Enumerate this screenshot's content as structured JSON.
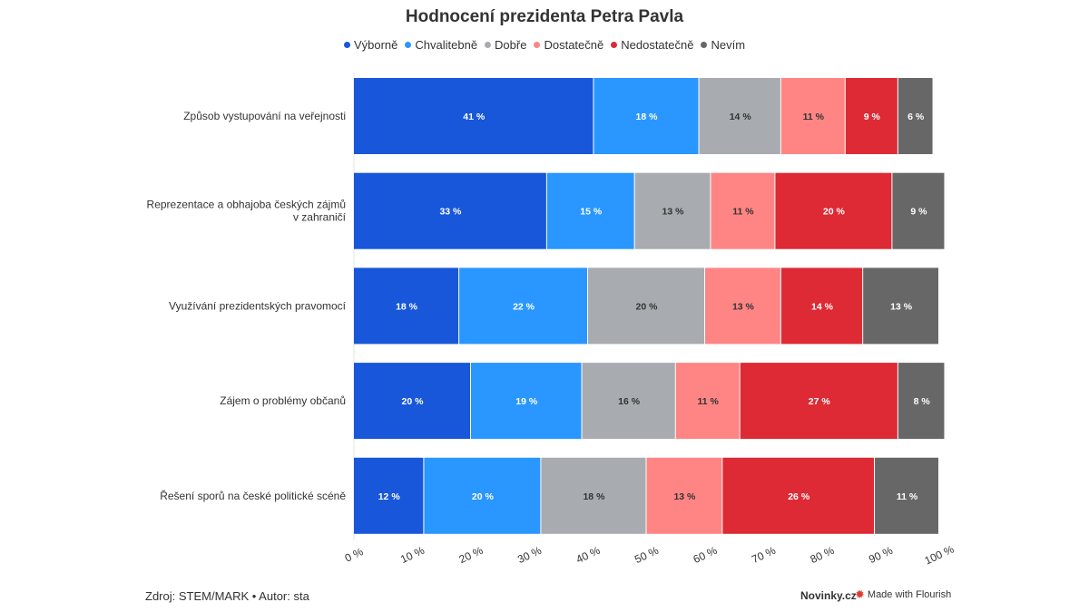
{
  "chart_data": {
    "type": "bar",
    "orientation": "horizontal",
    "stacked": true,
    "title": "Hodnocení prezidenta Petra Pavla",
    "categories": [
      "Způsob vystupování na veřejnosti",
      "Reprezentace a obhajoba českých zájmů v zahraničí",
      "Využívání prezidentských pravomocí",
      "Zájem o problémy občanů",
      "Řešení sporů na české politické scéně"
    ],
    "series": [
      {
        "name": "Výborně",
        "color": "#1857d9",
        "values": [
          41,
          33,
          18,
          20,
          12
        ]
      },
      {
        "name": "Chvalitebně",
        "color": "#2997ff",
        "values": [
          18,
          15,
          22,
          19,
          20
        ]
      },
      {
        "name": "Dobře",
        "color": "#a8abaf",
        "values": [
          14,
          13,
          20,
          16,
          18
        ]
      },
      {
        "name": "Dostatečně",
        "color": "#ff8585",
        "values": [
          11,
          11,
          13,
          11,
          13
        ]
      },
      {
        "name": "Nedostatečně",
        "color": "#dd2a35",
        "values": [
          9,
          20,
          14,
          27,
          26
        ]
      },
      {
        "name": "Nevím",
        "color": "#676767",
        "values": [
          6,
          9,
          13,
          8,
          11
        ]
      }
    ],
    "value_suffix": " %",
    "xlim": [
      0,
      100
    ],
    "xticks": [
      0,
      10,
      20,
      30,
      40,
      50,
      60,
      70,
      80,
      90,
      100
    ],
    "tick_labels": [
      "0 %",
      "10 %",
      "20 %",
      "30 %",
      "40 %",
      "50 %",
      "60 %",
      "70 %",
      "80 %",
      "90 %",
      "100 %"
    ],
    "legend_position": "top-center",
    "grid": false
  },
  "footer": {
    "source": "Zdroj: STEM/MARK • Autor: sta",
    "brand": "Novinky.cz",
    "flourish": "Made with Flourish",
    "flourish_icon": "flourish-star-icon"
  }
}
